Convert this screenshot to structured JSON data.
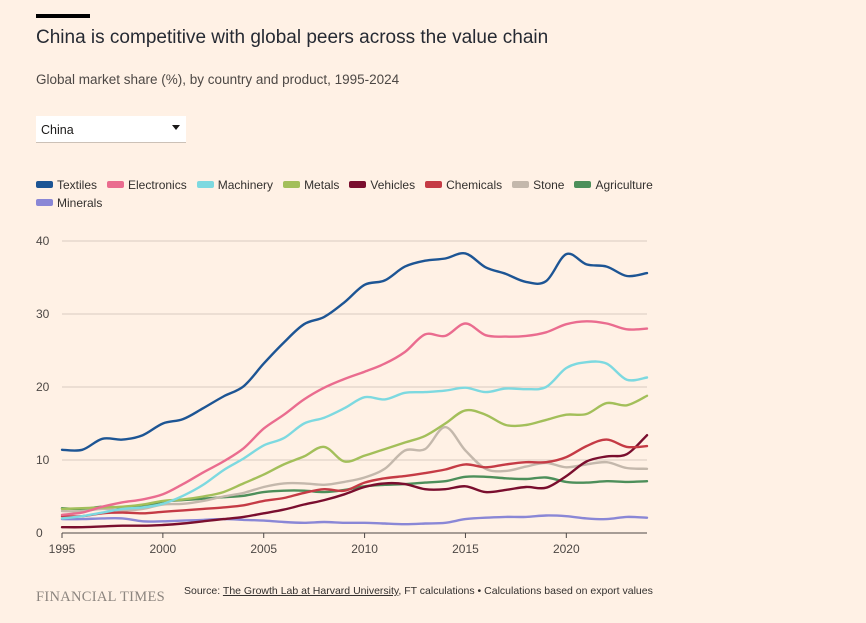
{
  "header": {
    "title": "China is competitive with global peers across the value chain",
    "subtitle": "Global market share (%), by country and product, 1995-2024"
  },
  "selector": {
    "selected": "China"
  },
  "chart_data": {
    "type": "line",
    "x": [
      1995,
      1996,
      1997,
      1998,
      1999,
      2000,
      2001,
      2002,
      2003,
      2004,
      2005,
      2006,
      2007,
      2008,
      2009,
      2010,
      2011,
      2012,
      2013,
      2014,
      2015,
      2016,
      2017,
      2018,
      2019,
      2020,
      2021,
      2022,
      2023,
      2024
    ],
    "xticks": [
      1995,
      2000,
      2005,
      2010,
      2015,
      2020
    ],
    "xlim": [
      1995,
      2024
    ],
    "ylim": [
      0,
      40
    ],
    "yticks": [
      0,
      10,
      20,
      30,
      40
    ],
    "xlabel": "",
    "ylabel": "",
    "grid": true,
    "series": [
      {
        "name": "Minerals",
        "color": "#8a87d6",
        "values": [
          1.9,
          1.9,
          2.0,
          2.0,
          1.6,
          1.6,
          1.7,
          1.8,
          1.9,
          1.8,
          1.7,
          1.5,
          1.4,
          1.5,
          1.4,
          1.4,
          1.3,
          1.2,
          1.3,
          1.4,
          1.9,
          2.1,
          2.2,
          2.2,
          2.4,
          2.3,
          2.0,
          1.9,
          2.2,
          2.1
        ]
      },
      {
        "name": "Agriculture",
        "color": "#4d8f5a",
        "values": [
          3.4,
          3.3,
          3.6,
          3.5,
          3.6,
          4.3,
          4.5,
          4.7,
          4.9,
          5.1,
          5.6,
          5.8,
          5.8,
          5.6,
          5.9,
          6.4,
          6.6,
          6.7,
          6.9,
          7.1,
          7.7,
          7.7,
          7.5,
          7.4,
          7.6,
          7.0,
          6.9,
          7.1,
          7.0,
          7.1
        ]
      },
      {
        "name": "Stone",
        "color": "#c4b8ac",
        "values": [
          3.0,
          3.0,
          3.3,
          3.1,
          3.3,
          3.9,
          4.0,
          4.4,
          5.0,
          5.5,
          6.3,
          6.8,
          6.8,
          6.6,
          7.0,
          7.6,
          8.8,
          11.3,
          11.5,
          14.5,
          11.3,
          8.8,
          8.5,
          9.1,
          9.6,
          9.0,
          9.4,
          9.7,
          8.9,
          8.8
        ]
      },
      {
        "name": "Vehicles",
        "color": "#7a0e2e",
        "values": [
          0.8,
          0.8,
          0.9,
          1.0,
          1.0,
          1.1,
          1.3,
          1.6,
          1.9,
          2.2,
          2.7,
          3.2,
          3.9,
          4.5,
          5.3,
          6.3,
          6.8,
          6.7,
          6.0,
          6.0,
          6.4,
          5.6,
          5.9,
          6.3,
          6.2,
          7.8,
          9.8,
          10.5,
          10.8,
          13.4
        ]
      },
      {
        "name": "Chemicals",
        "color": "#c53b45",
        "values": [
          2.3,
          2.3,
          2.7,
          2.8,
          2.7,
          2.9,
          3.1,
          3.3,
          3.5,
          3.8,
          4.4,
          4.8,
          5.5,
          6.0,
          5.8,
          6.9,
          7.5,
          7.8,
          8.2,
          8.7,
          9.4,
          9.0,
          9.4,
          9.7,
          9.7,
          10.4,
          11.9,
          12.8,
          11.8,
          11.9
        ]
      },
      {
        "name": "Metals",
        "color": "#a3bf5a",
        "values": [
          3.3,
          3.4,
          3.5,
          3.6,
          3.9,
          4.4,
          4.6,
          5.0,
          5.6,
          6.8,
          8.0,
          9.4,
          10.5,
          11.8,
          9.8,
          10.6,
          11.5,
          12.4,
          13.3,
          15.0,
          16.8,
          16.2,
          14.8,
          14.8,
          15.5,
          16.2,
          16.3,
          17.8,
          17.5,
          18.8
        ]
      },
      {
        "name": "Machinery",
        "color": "#7dd9e0",
        "values": [
          2.0,
          2.3,
          2.8,
          3.3,
          3.5,
          4.0,
          5.1,
          6.6,
          8.6,
          10.2,
          12.0,
          13.0,
          15.0,
          15.8,
          17.1,
          18.6,
          18.3,
          19.2,
          19.3,
          19.5,
          19.9,
          19.3,
          19.8,
          19.7,
          20.0,
          22.6,
          23.4,
          23.2,
          21.0,
          21.3
        ]
      },
      {
        "name": "Electronics",
        "color": "#ea6c8f",
        "values": [
          2.5,
          2.8,
          3.6,
          4.2,
          4.6,
          5.3,
          6.7,
          8.3,
          9.8,
          11.6,
          14.3,
          16.2,
          18.3,
          19.9,
          21.1,
          22.1,
          23.2,
          24.8,
          27.2,
          27.0,
          28.7,
          27.1,
          26.9,
          27.0,
          27.5,
          28.6,
          29.0,
          28.7,
          27.9,
          28.0
        ]
      },
      {
        "name": "Textiles",
        "color": "#1d5594",
        "values": [
          11.4,
          11.4,
          12.9,
          12.8,
          13.4,
          15.0,
          15.6,
          17.1,
          18.7,
          20.1,
          23.2,
          26.1,
          28.6,
          29.6,
          31.6,
          34.0,
          34.6,
          36.5,
          37.3,
          37.6,
          38.3,
          36.4,
          35.5,
          34.4,
          34.5,
          38.2,
          36.8,
          36.5,
          35.2,
          35.6
        ]
      }
    ]
  },
  "legend": {
    "items": [
      {
        "label": "Textiles",
        "color": "#1d5594"
      },
      {
        "label": "Electronics",
        "color": "#ea6c8f"
      },
      {
        "label": "Machinery",
        "color": "#7dd9e0"
      },
      {
        "label": "Metals",
        "color": "#a3bf5a"
      },
      {
        "label": "Vehicles",
        "color": "#7a0e2e"
      },
      {
        "label": "Chemicals",
        "color": "#c53b45"
      },
      {
        "label": "Stone",
        "color": "#c4b8ac"
      },
      {
        "label": "Agriculture",
        "color": "#4d8f5a"
      },
      {
        "label": "Minerals",
        "color": "#8a87d6"
      }
    ]
  },
  "footer": {
    "logo": "FINANCIAL TIMES",
    "source_prefix": "Source: ",
    "source_link": "The Growth Lab at Harvard University",
    "source_suffix": ", FT calculations • Calculations based on export values"
  }
}
